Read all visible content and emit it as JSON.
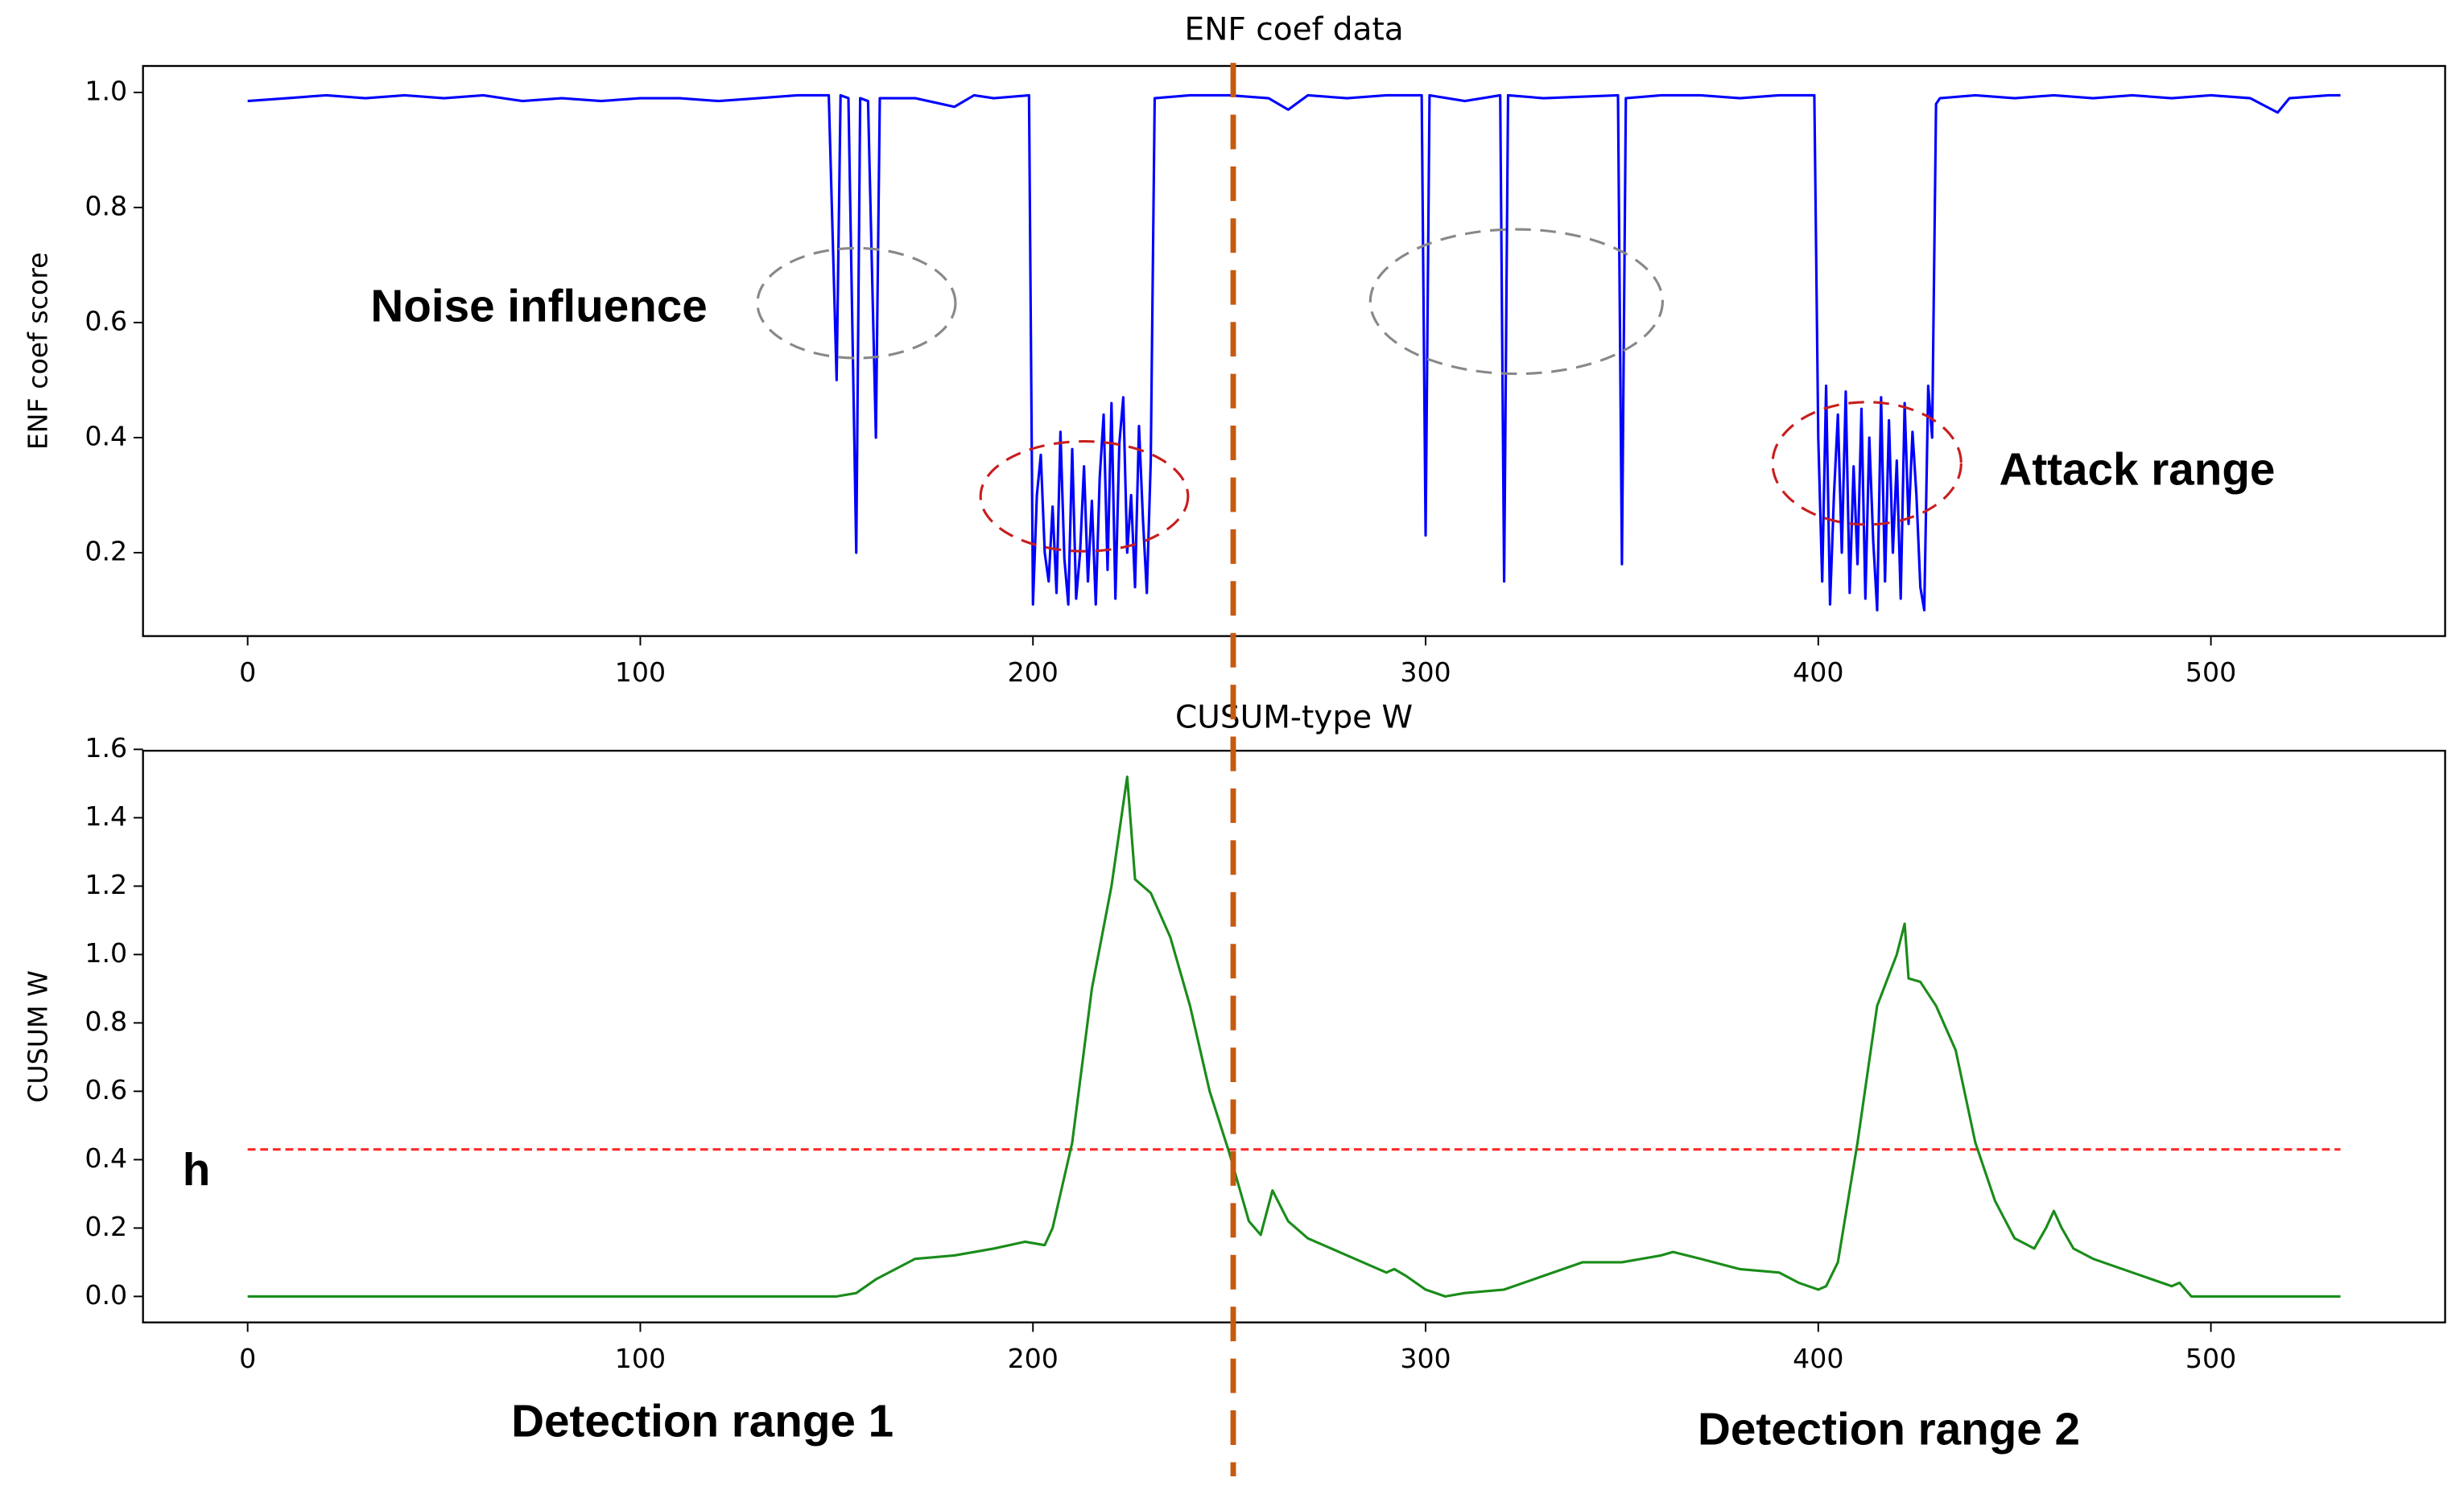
{
  "chart_data": [
    {
      "type": "line",
      "title": "ENF coef data",
      "y_label": "ENF coef score",
      "xlim": [
        -26.65,
        559.65
      ],
      "xticks": [
        0,
        100,
        200,
        300,
        400,
        500
      ],
      "ylim": [
        0.055,
        1.046
      ],
      "yticks": [
        0.2,
        0.4,
        0.6,
        0.8,
        {
          "value": 1.0,
          "label": "1.0"
        }
      ],
      "vline": 251,
      "vline_color": "#c55a11",
      "annotations": [
        "Noise influence",
        "Attack range"
      ],
      "series": [
        {
          "name": "ENF coef score",
          "color": "#0000ff",
          "x": [
            0,
            10,
            20,
            30,
            40,
            50,
            60,
            70,
            80,
            90,
            100,
            110,
            120,
            130,
            140,
            148,
            150,
            151,
            153,
            155,
            156,
            158,
            160,
            161,
            163,
            170,
            180,
            185,
            190,
            199,
            200,
            201,
            202,
            203,
            204,
            205,
            206,
            207,
            208,
            209,
            210,
            211,
            212,
            213,
            214,
            215,
            216,
            217,
            218,
            219,
            220,
            221,
            222,
            223,
            224,
            225,
            226,
            227,
            228,
            229,
            230,
            231,
            240,
            250,
            260,
            265,
            270,
            280,
            290,
            299,
            300,
            301,
            310,
            319,
            320,
            321,
            330,
            349,
            350,
            351,
            360,
            370,
            380,
            390,
            399,
            400,
            401,
            402,
            403,
            404,
            405,
            406,
            407,
            408,
            409,
            410,
            411,
            412,
            413,
            414,
            415,
            416,
            417,
            418,
            419,
            420,
            421,
            422,
            423,
            424,
            425,
            426,
            427,
            428,
            429,
            430,
            431,
            440,
            450,
            460,
            470,
            480,
            490,
            500,
            510,
            517,
            520,
            530,
            533
          ],
          "values": [
            0.985,
            0.99,
            0.995,
            0.99,
            0.995,
            0.99,
            0.995,
            0.985,
            0.99,
            0.985,
            0.99,
            0.99,
            0.985,
            0.99,
            0.995,
            0.995,
            0.5,
            0.995,
            0.99,
            0.2,
            0.99,
            0.985,
            0.4,
            0.99,
            0.99,
            0.99,
            0.975,
            0.995,
            0.99,
            0.995,
            0.11,
            0.3,
            0.37,
            0.2,
            0.15,
            0.28,
            0.13,
            0.41,
            0.19,
            0.11,
            0.38,
            0.12,
            0.2,
            0.35,
            0.15,
            0.29,
            0.11,
            0.33,
            0.44,
            0.17,
            0.46,
            0.12,
            0.39,
            0.47,
            0.2,
            0.3,
            0.14,
            0.42,
            0.26,
            0.13,
            0.36,
            0.99,
            0.995,
            0.995,
            0.99,
            0.97,
            0.995,
            0.99,
            0.995,
            0.995,
            0.23,
            0.995,
            0.985,
            0.995,
            0.15,
            0.995,
            0.99,
            0.995,
            0.18,
            0.99,
            0.995,
            0.995,
            0.99,
            0.995,
            0.995,
            0.4,
            0.15,
            0.49,
            0.11,
            0.3,
            0.44,
            0.2,
            0.48,
            0.13,
            0.35,
            0.18,
            0.45,
            0.12,
            0.4,
            0.22,
            0.1,
            0.47,
            0.15,
            0.43,
            0.2,
            0.36,
            0.12,
            0.46,
            0.25,
            0.41,
            0.3,
            0.14,
            0.1,
            0.49,
            0.4,
            0.98,
            0.99,
            0.995,
            0.99,
            0.995,
            0.99,
            0.995,
            0.99,
            0.995,
            0.99,
            0.965,
            0.99,
            0.995,
            0.995
          ]
        }
      ]
    },
    {
      "type": "line",
      "title": "CUSUM-type W",
      "y_label": "CUSUM W",
      "xlim": [
        -26.65,
        559.65
      ],
      "xticks": [
        0,
        100,
        200,
        300,
        400,
        500
      ],
      "ylim": [
        -0.076,
        1.596
      ],
      "yticks": [
        {
          "value": 0.0,
          "label": "0.0"
        },
        0.2,
        0.4,
        0.6,
        0.8,
        {
          "value": 1.0,
          "label": "1.0"
        },
        1.2,
        1.4,
        1.6
      ],
      "hline": 0.43,
      "hline_color": "#ff2a2a",
      "annotations": [
        "h",
        "Detection range 1",
        "Detection range 2"
      ],
      "series": [
        {
          "name": "CUSUM W",
          "color": "#1a8c1a",
          "x": [
            0,
            50,
            100,
            150,
            155,
            160,
            165,
            170,
            180,
            190,
            198,
            203,
            205,
            210,
            215,
            220,
            224,
            226,
            230,
            235,
            240,
            245,
            250,
            253,
            255,
            258,
            261,
            265,
            270,
            280,
            290,
            292,
            295,
            300,
            305,
            310,
            320,
            330,
            340,
            350,
            360,
            363,
            370,
            380,
            390,
            395,
            400,
            402,
            405,
            410,
            415,
            420,
            422,
            423,
            426,
            430,
            435,
            440,
            445,
            450,
            455,
            458,
            460,
            462,
            465,
            470,
            480,
            490,
            492,
            495,
            500,
            510,
            520,
            533
          ],
          "values": [
            0,
            0,
            0,
            0,
            0.01,
            0.05,
            0.08,
            0.11,
            0.12,
            0.14,
            0.16,
            0.15,
            0.2,
            0.45,
            0.9,
            1.2,
            1.52,
            1.22,
            1.18,
            1.05,
            0.85,
            0.6,
            0.42,
            0.3,
            0.22,
            0.18,
            0.31,
            0.22,
            0.17,
            0.12,
            0.07,
            0.08,
            0.06,
            0.02,
            0,
            0.01,
            0.02,
            0.06,
            0.1,
            0.1,
            0.12,
            0.13,
            0.11,
            0.08,
            0.07,
            0.04,
            0.02,
            0.03,
            0.1,
            0.45,
            0.85,
            1.0,
            1.09,
            0.93,
            0.92,
            0.85,
            0.72,
            0.45,
            0.28,
            0.17,
            0.14,
            0.2,
            0.25,
            0.2,
            0.14,
            0.11,
            0.07,
            0.03,
            0.04,
            0,
            0,
            0,
            0,
            0
          ]
        }
      ]
    }
  ]
}
